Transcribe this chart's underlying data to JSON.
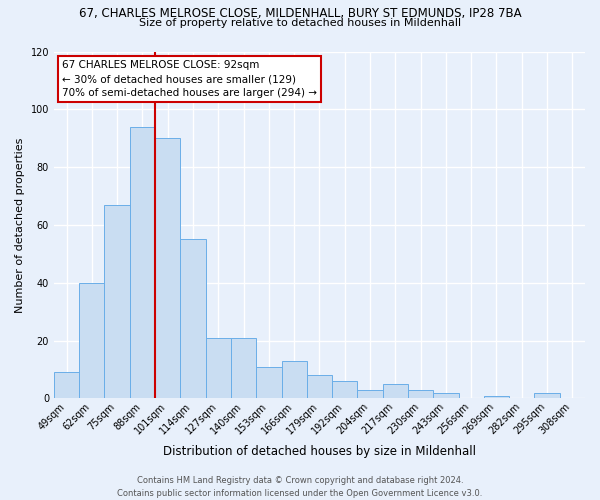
{
  "title_line1": "67, CHARLES MELROSE CLOSE, MILDENHALL, BURY ST EDMUNDS, IP28 7BA",
  "title_line2": "Size of property relative to detached houses in Mildenhall",
  "xlabel": "Distribution of detached houses by size in Mildenhall",
  "ylabel": "Number of detached properties",
  "bin_labels": [
    "49sqm",
    "62sqm",
    "75sqm",
    "88sqm",
    "101sqm",
    "114sqm",
    "127sqm",
    "140sqm",
    "153sqm",
    "166sqm",
    "179sqm",
    "192sqm",
    "204sqm",
    "217sqm",
    "230sqm",
    "243sqm",
    "256sqm",
    "269sqm",
    "282sqm",
    "295sqm",
    "308sqm"
  ],
  "bar_heights": [
    9,
    40,
    67,
    94,
    90,
    55,
    21,
    21,
    11,
    13,
    8,
    6,
    3,
    5,
    3,
    2,
    0,
    1,
    0,
    2,
    0
  ],
  "bar_color": "#c9ddf2",
  "bar_edge_color": "#6aaee8",
  "vline_x": 3.5,
  "vline_color": "#cc0000",
  "ylim": [
    0,
    120
  ],
  "yticks": [
    0,
    20,
    40,
    60,
    80,
    100,
    120
  ],
  "annotation_line1": "67 CHARLES MELROSE CLOSE: 92sqm",
  "annotation_line2": "← 30% of detached houses are smaller (129)",
  "annotation_line3": "70% of semi-detached houses are larger (294) →",
  "annotation_box_facecolor": "#ffffff",
  "annotation_box_edgecolor": "#cc0000",
  "footer_line1": "Contains HM Land Registry data © Crown copyright and database right 2024.",
  "footer_line2": "Contains public sector information licensed under the Open Government Licence v3.0.",
  "background_color": "#e8f0fb",
  "plot_bg_color": "#e8f0fb",
  "grid_color": "#ffffff",
  "title1_fontsize": 8.5,
  "title2_fontsize": 8.0,
  "ylabel_fontsize": 8.0,
  "xlabel_fontsize": 8.5,
  "tick_fontsize": 7.0,
  "annotation_fontsize": 7.5,
  "footer_fontsize": 6.0
}
